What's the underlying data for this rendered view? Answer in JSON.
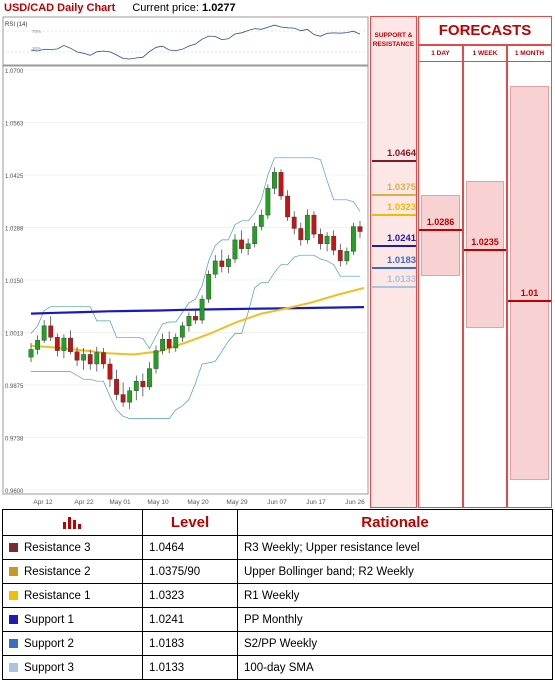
{
  "header": {
    "pair_title": "USD/CAD Daily Chart",
    "current_price_label": "Current price:",
    "current_price": "1.0277"
  },
  "rsi": {
    "label": "RSI (14)",
    "upper_label": "70%",
    "lower_label": "30%"
  },
  "support_resistance_header": "SUPPORT & RESISTANCE",
  "forecasts": {
    "title": "FORECASTS",
    "columns": [
      {
        "label": "1 DAY",
        "value": "1.0286",
        "band": [
          1.0375,
          1.0162
        ],
        "center": 1.0286
      },
      {
        "label": "1 WEEK",
        "value": "1.0235",
        "band": [
          1.0413,
          1.0027
        ],
        "center": 1.0235
      },
      {
        "label": "1 MONTH",
        "value": "1.01",
        "band": [
          1.066,
          0.963
        ],
        "center": 1.01
      }
    ]
  },
  "levels_on_chart": [
    {
      "value": "1.0464",
      "color": "#7b1a2a"
    },
    {
      "value": "1.0375",
      "color": "#d8b048"
    },
    {
      "value": "1.0323",
      "color": "#e8c000"
    },
    {
      "value": "1.0241",
      "color": "#1c1cb0"
    },
    {
      "value": "1.0183",
      "color": "#3a6ec0"
    },
    {
      "value": "1.0133",
      "color": "#a7c4e0"
    }
  ],
  "chart_data": {
    "type": "line",
    "title": "USD/CAD Daily Chart",
    "y_ticks": [
      "1.0700",
      "1.0563",
      "1.0425",
      "1.0288",
      "1.0150",
      "1.0013",
      "0.9875",
      "0.9738",
      "0.9600"
    ],
    "ylim": [
      0.96,
      1.07
    ],
    "x_ticks": [
      "Apr 12",
      "Apr 22",
      "May 01",
      "May 10",
      "May 20",
      "May 29",
      "Jun 07",
      "Jun 17",
      "Jun 26"
    ],
    "series": [
      {
        "name": "SMA",
        "color": "#1a1ab8",
        "values": [
          1.0062,
          1.0064,
          1.0066,
          1.0068,
          1.0069,
          1.007,
          1.0072,
          1.0073,
          1.0074,
          1.0075,
          1.0076,
          1.0077,
          1.0078,
          1.0079
        ]
      },
      {
        "name": "SMA",
        "color": "#f0c020",
        "values": [
          0.9978,
          0.9973,
          0.9966,
          0.9958,
          0.9955,
          0.9963,
          0.9985,
          1.001,
          1.0039,
          1.0062,
          1.0076,
          1.0092,
          1.0112,
          1.0129
        ]
      }
    ],
    "candles": [
      [
        0.9948,
        0.9985,
        0.9935,
        0.9968
      ],
      [
        0.9968,
        1.0005,
        0.9955,
        0.9992
      ],
      [
        0.9992,
        1.0045,
        0.9985,
        1.003
      ],
      [
        1.003,
        1.0055,
        0.999,
        1.0
      ],
      [
        1.0,
        1.001,
        0.995,
        0.9965
      ],
      [
        0.9965,
        1.0008,
        0.9945,
        0.9998
      ],
      [
        0.9998,
        1.0018,
        0.9955,
        0.9962
      ],
      [
        0.9962,
        0.9975,
        0.9925,
        0.994
      ],
      [
        0.994,
        0.9972,
        0.9915,
        0.9955
      ],
      [
        0.9955,
        0.9968,
        0.9915,
        0.993
      ],
      [
        0.993,
        0.9975,
        0.991,
        0.996
      ],
      [
        0.996,
        0.9972,
        0.9918,
        0.993
      ],
      [
        0.993,
        0.9945,
        0.987,
        0.989
      ],
      [
        0.989,
        0.9915,
        0.9835,
        0.985
      ],
      [
        0.985,
        0.9882,
        0.9818,
        0.983
      ],
      [
        0.983,
        0.987,
        0.9812,
        0.986
      ],
      [
        0.986,
        0.99,
        0.9835,
        0.9885
      ],
      [
        0.9885,
        0.9905,
        0.9845,
        0.987
      ],
      [
        0.987,
        0.9935,
        0.9862,
        0.9918
      ],
      [
        0.9918,
        0.9978,
        0.9905,
        0.9965
      ],
      [
        0.9965,
        1.001,
        0.9955,
        0.9995
      ],
      [
        0.9995,
        1.0015,
        0.9958,
        0.9972
      ],
      [
        0.9972,
        1.001,
        0.9962,
        1.0
      ],
      [
        1.0,
        1.004,
        0.9988,
        1.003
      ],
      [
        1.003,
        1.0065,
        1.0015,
        1.0055
      ],
      [
        1.0055,
        1.0075,
        1.0035,
        1.0045
      ],
      [
        1.0045,
        1.011,
        1.0035,
        1.01
      ],
      [
        1.01,
        1.0175,
        1.009,
        1.0165
      ],
      [
        1.0165,
        1.0215,
        1.0155,
        1.02
      ],
      [
        1.02,
        1.023,
        1.017,
        1.0185
      ],
      [
        1.0185,
        1.0215,
        1.0168,
        1.0205
      ],
      [
        1.0205,
        1.027,
        1.0195,
        1.0255
      ],
      [
        1.0255,
        1.028,
        1.022,
        1.0232
      ],
      [
        1.0232,
        1.0258,
        1.0215,
        1.0245
      ],
      [
        1.0245,
        1.03,
        1.0235,
        1.029
      ],
      [
        1.029,
        1.0335,
        1.028,
        1.032
      ],
      [
        1.032,
        1.04,
        1.031,
        1.039
      ],
      [
        1.039,
        1.0445,
        1.0375,
        1.0432
      ],
      [
        1.0432,
        1.044,
        1.036,
        1.037
      ],
      [
        1.037,
        1.0385,
        1.0305,
        1.0315
      ],
      [
        1.0315,
        1.033,
        1.027,
        1.0285
      ],
      [
        1.0285,
        1.03,
        1.024,
        1.0255
      ],
      [
        1.0255,
        1.0335,
        1.0245,
        1.032
      ],
      [
        1.032,
        1.033,
        1.026,
        1.027
      ],
      [
        1.027,
        1.0285,
        1.023,
        1.0245
      ],
      [
        1.0245,
        1.0275,
        1.0225,
        1.0265
      ],
      [
        1.0265,
        1.028,
        1.0215,
        1.0228
      ],
      [
        1.0228,
        1.0245,
        1.0185,
        1.02
      ],
      [
        1.02,
        1.0235,
        1.019,
        1.0225
      ],
      [
        1.0225,
        1.03,
        1.0215,
        1.029
      ],
      [
        1.029,
        1.0305,
        1.026,
        1.0277
      ]
    ]
  },
  "table": {
    "headers": [
      "",
      "Level",
      "Rationale"
    ],
    "rows": [
      {
        "label": "Resistance 3",
        "swatch": "#7b2c2c",
        "level": "1.0464",
        "rationale": "R3 Weekly; Upper resistance level"
      },
      {
        "label": "Resistance 2",
        "swatch": "#c69a20",
        "level": "1.0375/90",
        "rationale": "Upper Bollinger band; R2 Weekly"
      },
      {
        "label": "Resistance 1",
        "swatch": "#f0c000",
        "level": "1.0323",
        "rationale": "R1 Weekly"
      },
      {
        "label": "Support 1",
        "swatch": "#1c1cb0",
        "level": "1.0241",
        "rationale": "PP Monthly"
      },
      {
        "label": "Support 2",
        "swatch": "#3a6ec0",
        "level": "1.0183",
        "rationale": "S2/PP Weekly"
      },
      {
        "label": "Support 3",
        "swatch": "#a7c4e0",
        "level": "1.0133",
        "rationale": "100-day SMA"
      }
    ]
  }
}
